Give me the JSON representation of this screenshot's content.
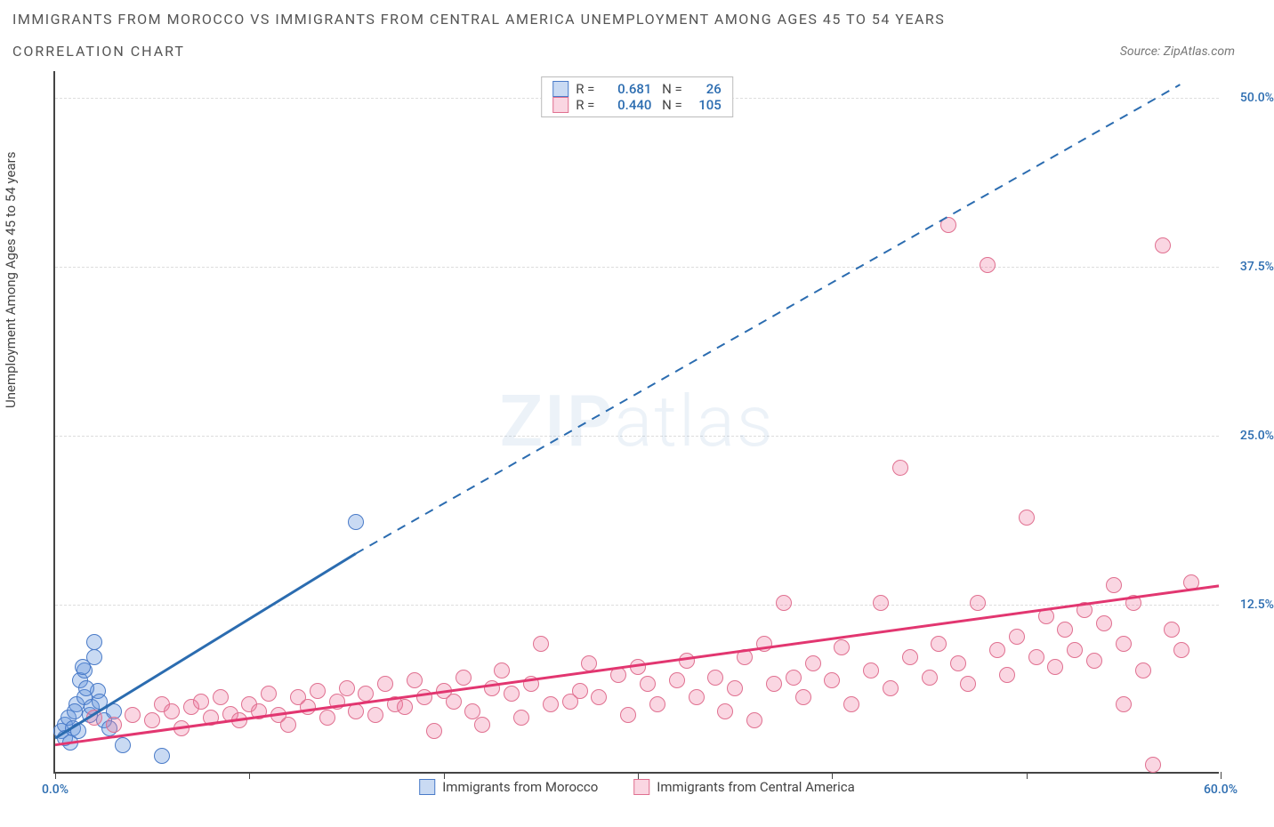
{
  "title_main": "IMMIGRANTS FROM MOROCCO VS IMMIGRANTS FROM CENTRAL AMERICA UNEMPLOYMENT AMONG AGES 45 TO 54 YEARS",
  "title_sub": "CORRELATION CHART",
  "source_prefix": "Source: ",
  "source_name": "ZipAtlas.com",
  "ylabel": "Unemployment Among Ages 45 to 54 years",
  "watermark_a": "ZIP",
  "watermark_b": "atlas",
  "chart": {
    "type": "scatter",
    "xlim": [
      0,
      60
    ],
    "ylim": [
      0,
      52
    ],
    "grid_color": "#dddddd",
    "background_color": "#ffffff",
    "point_radius": 9,
    "x_tick_positions": [
      0,
      10,
      20,
      30,
      40,
      50,
      60
    ],
    "y_ticks": [
      {
        "v": 12.5,
        "label": "12.5%"
      },
      {
        "v": 25.0,
        "label": "25.0%"
      },
      {
        "v": 37.5,
        "label": "37.5%"
      },
      {
        "v": 50.0,
        "label": "50.0%"
      }
    ],
    "x_labels": {
      "start": "0.0%",
      "end": "60.0%"
    }
  },
  "series": [
    {
      "key": "morocco",
      "label": "Immigrants from Morocco",
      "R": "0.681",
      "N": "26",
      "fill": "rgba(100,150,220,0.35)",
      "stroke": "#4a7bc8",
      "line_color": "#2b6cb0",
      "line_solid": {
        "x1": 0,
        "y1": 2.5,
        "x2": 15.5,
        "y2": 16.2
      },
      "line_dash": {
        "x1": 15.5,
        "y1": 16.2,
        "x2": 58,
        "y2": 51
      },
      "points": [
        [
          0.3,
          3.0
        ],
        [
          0.5,
          3.5
        ],
        [
          0.7,
          4.0
        ],
        [
          0.9,
          3.2
        ],
        [
          1.1,
          5.0
        ],
        [
          1.3,
          6.8
        ],
        [
          1.5,
          7.5
        ],
        [
          1.5,
          5.5
        ],
        [
          1.8,
          4.2
        ],
        [
          2.0,
          8.5
        ],
        [
          2.2,
          6.0
        ],
        [
          2.5,
          3.8
        ],
        [
          0.5,
          2.5
        ],
        [
          0.8,
          2.2
        ],
        [
          1.0,
          4.5
        ],
        [
          1.2,
          3.0
        ],
        [
          1.6,
          6.2
        ],
        [
          1.9,
          4.8
        ],
        [
          2.3,
          5.2
        ],
        [
          2.8,
          3.2
        ],
        [
          3.0,
          4.5
        ],
        [
          3.5,
          2.0
        ],
        [
          1.4,
          7.8
        ],
        [
          5.5,
          1.2
        ],
        [
          2.0,
          9.6
        ],
        [
          15.5,
          18.5
        ]
      ]
    },
    {
      "key": "central_america",
      "label": "Immigrants from Central America",
      "R": "0.440",
      "N": "105",
      "fill": "rgba(240,120,160,0.30)",
      "stroke": "#e07090",
      "line_color": "#e23670",
      "line_solid": {
        "x1": 0,
        "y1": 2.0,
        "x2": 60,
        "y2": 13.8
      },
      "line_dash": null,
      "points": [
        [
          2,
          4.0
        ],
        [
          3,
          3.5
        ],
        [
          4,
          4.2
        ],
        [
          5,
          3.8
        ],
        [
          5.5,
          5.0
        ],
        [
          6,
          4.5
        ],
        [
          6.5,
          3.2
        ],
        [
          7,
          4.8
        ],
        [
          7.5,
          5.2
        ],
        [
          8,
          4.0
        ],
        [
          8.5,
          5.5
        ],
        [
          9,
          4.3
        ],
        [
          9.5,
          3.8
        ],
        [
          10,
          5.0
        ],
        [
          10.5,
          4.5
        ],
        [
          11,
          5.8
        ],
        [
          11.5,
          4.2
        ],
        [
          12,
          3.5
        ],
        [
          12.5,
          5.5
        ],
        [
          13,
          4.8
        ],
        [
          13.5,
          6.0
        ],
        [
          14,
          4.0
        ],
        [
          14.5,
          5.2
        ],
        [
          15,
          6.2
        ],
        [
          15.5,
          4.5
        ],
        [
          16,
          5.8
        ],
        [
          16.5,
          4.2
        ],
        [
          17,
          6.5
        ],
        [
          17.5,
          5.0
        ],
        [
          18,
          4.8
        ],
        [
          18.5,
          6.8
        ],
        [
          19,
          5.5
        ],
        [
          19.5,
          3.0
        ],
        [
          20,
          6.0
        ],
        [
          20.5,
          5.2
        ],
        [
          21,
          7.0
        ],
        [
          21.5,
          4.5
        ],
        [
          22,
          3.5
        ],
        [
          22.5,
          6.2
        ],
        [
          23,
          7.5
        ],
        [
          23.5,
          5.8
        ],
        [
          24,
          4.0
        ],
        [
          24.5,
          6.5
        ],
        [
          25,
          9.5
        ],
        [
          25.5,
          5.0
        ],
        [
          26.5,
          5.2
        ],
        [
          27,
          6.0
        ],
        [
          27.5,
          8.0
        ],
        [
          28,
          5.5
        ],
        [
          29,
          7.2
        ],
        [
          29.5,
          4.2
        ],
        [
          30,
          7.8
        ],
        [
          30.5,
          6.5
        ],
        [
          31,
          5.0
        ],
        [
          32,
          6.8
        ],
        [
          32.5,
          8.2
        ],
        [
          33,
          5.5
        ],
        [
          34,
          7.0
        ],
        [
          34.5,
          4.5
        ],
        [
          35,
          6.2
        ],
        [
          35.5,
          8.5
        ],
        [
          36,
          3.8
        ],
        [
          36.5,
          9.5
        ],
        [
          37,
          6.5
        ],
        [
          37.5,
          12.5
        ],
        [
          38,
          7.0
        ],
        [
          38.5,
          5.5
        ],
        [
          39,
          8.0
        ],
        [
          40,
          6.8
        ],
        [
          40.5,
          9.2
        ],
        [
          41,
          5.0
        ],
        [
          42,
          7.5
        ],
        [
          42.5,
          12.5
        ],
        [
          43,
          6.2
        ],
        [
          43.5,
          22.5
        ],
        [
          44,
          8.5
        ],
        [
          45,
          7.0
        ],
        [
          45.5,
          9.5
        ],
        [
          46,
          40.5
        ],
        [
          46.5,
          8.0
        ],
        [
          47,
          6.5
        ],
        [
          47.5,
          12.5
        ],
        [
          48,
          37.5
        ],
        [
          48.5,
          9.0
        ],
        [
          49,
          7.2
        ],
        [
          49.5,
          10.0
        ],
        [
          50,
          18.8
        ],
        [
          50.5,
          8.5
        ],
        [
          51,
          11.5
        ],
        [
          51.5,
          7.8
        ],
        [
          52,
          10.5
        ],
        [
          52.5,
          9.0
        ],
        [
          53,
          12.0
        ],
        [
          53.5,
          8.2
        ],
        [
          54,
          11.0
        ],
        [
          54.5,
          13.8
        ],
        [
          55,
          9.5
        ],
        [
          55.5,
          12.5
        ],
        [
          56,
          7.5
        ],
        [
          56.5,
          0.5
        ],
        [
          57,
          39.0
        ],
        [
          57.5,
          10.5
        ],
        [
          58,
          9.0
        ],
        [
          58.5,
          14.0
        ],
        [
          55,
          5.0
        ]
      ]
    }
  ],
  "legend_rows": [
    {
      "swatch_fill": "rgba(100,150,220,0.35)",
      "swatch_stroke": "#4a7bc8",
      "R": "0.681",
      "N": "26"
    },
    {
      "swatch_fill": "rgba(240,120,160,0.30)",
      "swatch_stroke": "#e07090",
      "R": "0.440",
      "N": "105"
    }
  ],
  "legend_labels": {
    "R": "R =",
    "N": "N ="
  }
}
